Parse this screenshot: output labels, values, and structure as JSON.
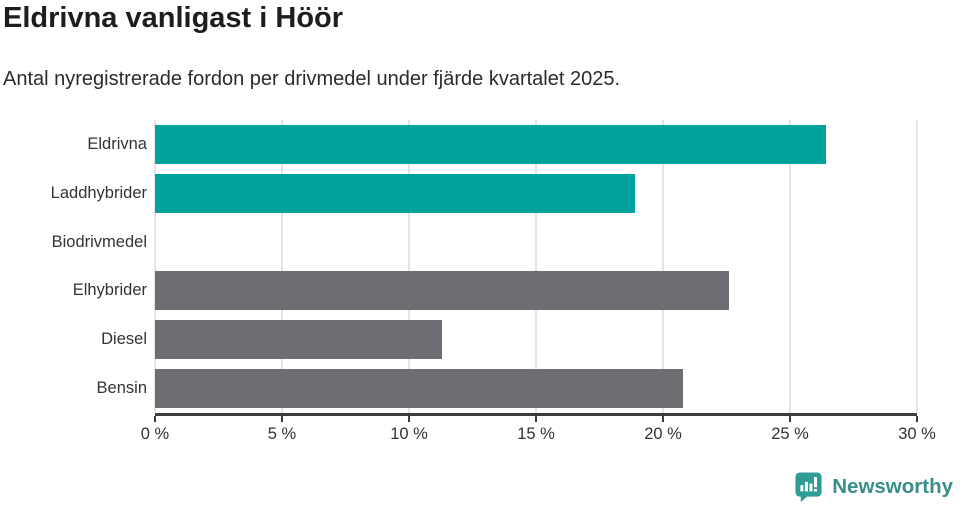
{
  "header": {
    "title": "Eldrivna vanligast i Höör",
    "subtitle": "Antal nyregistrerade fordon per drivmedel under fjärde kvartalet 2025."
  },
  "chart_data": {
    "type": "bar",
    "orientation": "horizontal",
    "title": "Eldrivna vanligast i Höör",
    "subtitle": "Antal nyregistrerade fordon per drivmedel under fjärde kvartalet 2025.",
    "categories": [
      "Eldrivna",
      "Laddhybrider",
      "Biodrivmedel",
      "Elhybrider",
      "Diesel",
      "Bensin"
    ],
    "values": [
      26.4,
      18.9,
      0,
      22.6,
      11.3,
      20.8
    ],
    "unit": "%",
    "xlim": [
      0,
      30
    ],
    "x_ticks": [
      0,
      5,
      10,
      15,
      20,
      25,
      30
    ],
    "x_tick_labels": [
      "0 %",
      "5 %",
      "10 %",
      "15 %",
      "20 %",
      "25 %",
      "30 %"
    ],
    "grid": "vertical-only",
    "legend": "none",
    "colors": {
      "highlight": "#00a39b",
      "default": "#6d6d73"
    },
    "bar_color_keys": [
      "highlight",
      "highlight",
      "default",
      "default",
      "default",
      "default"
    ]
  },
  "footer": {
    "brand_label": "Newsworthy",
    "brand_color": "#398e8b",
    "icon_color": "#2f9c95"
  }
}
